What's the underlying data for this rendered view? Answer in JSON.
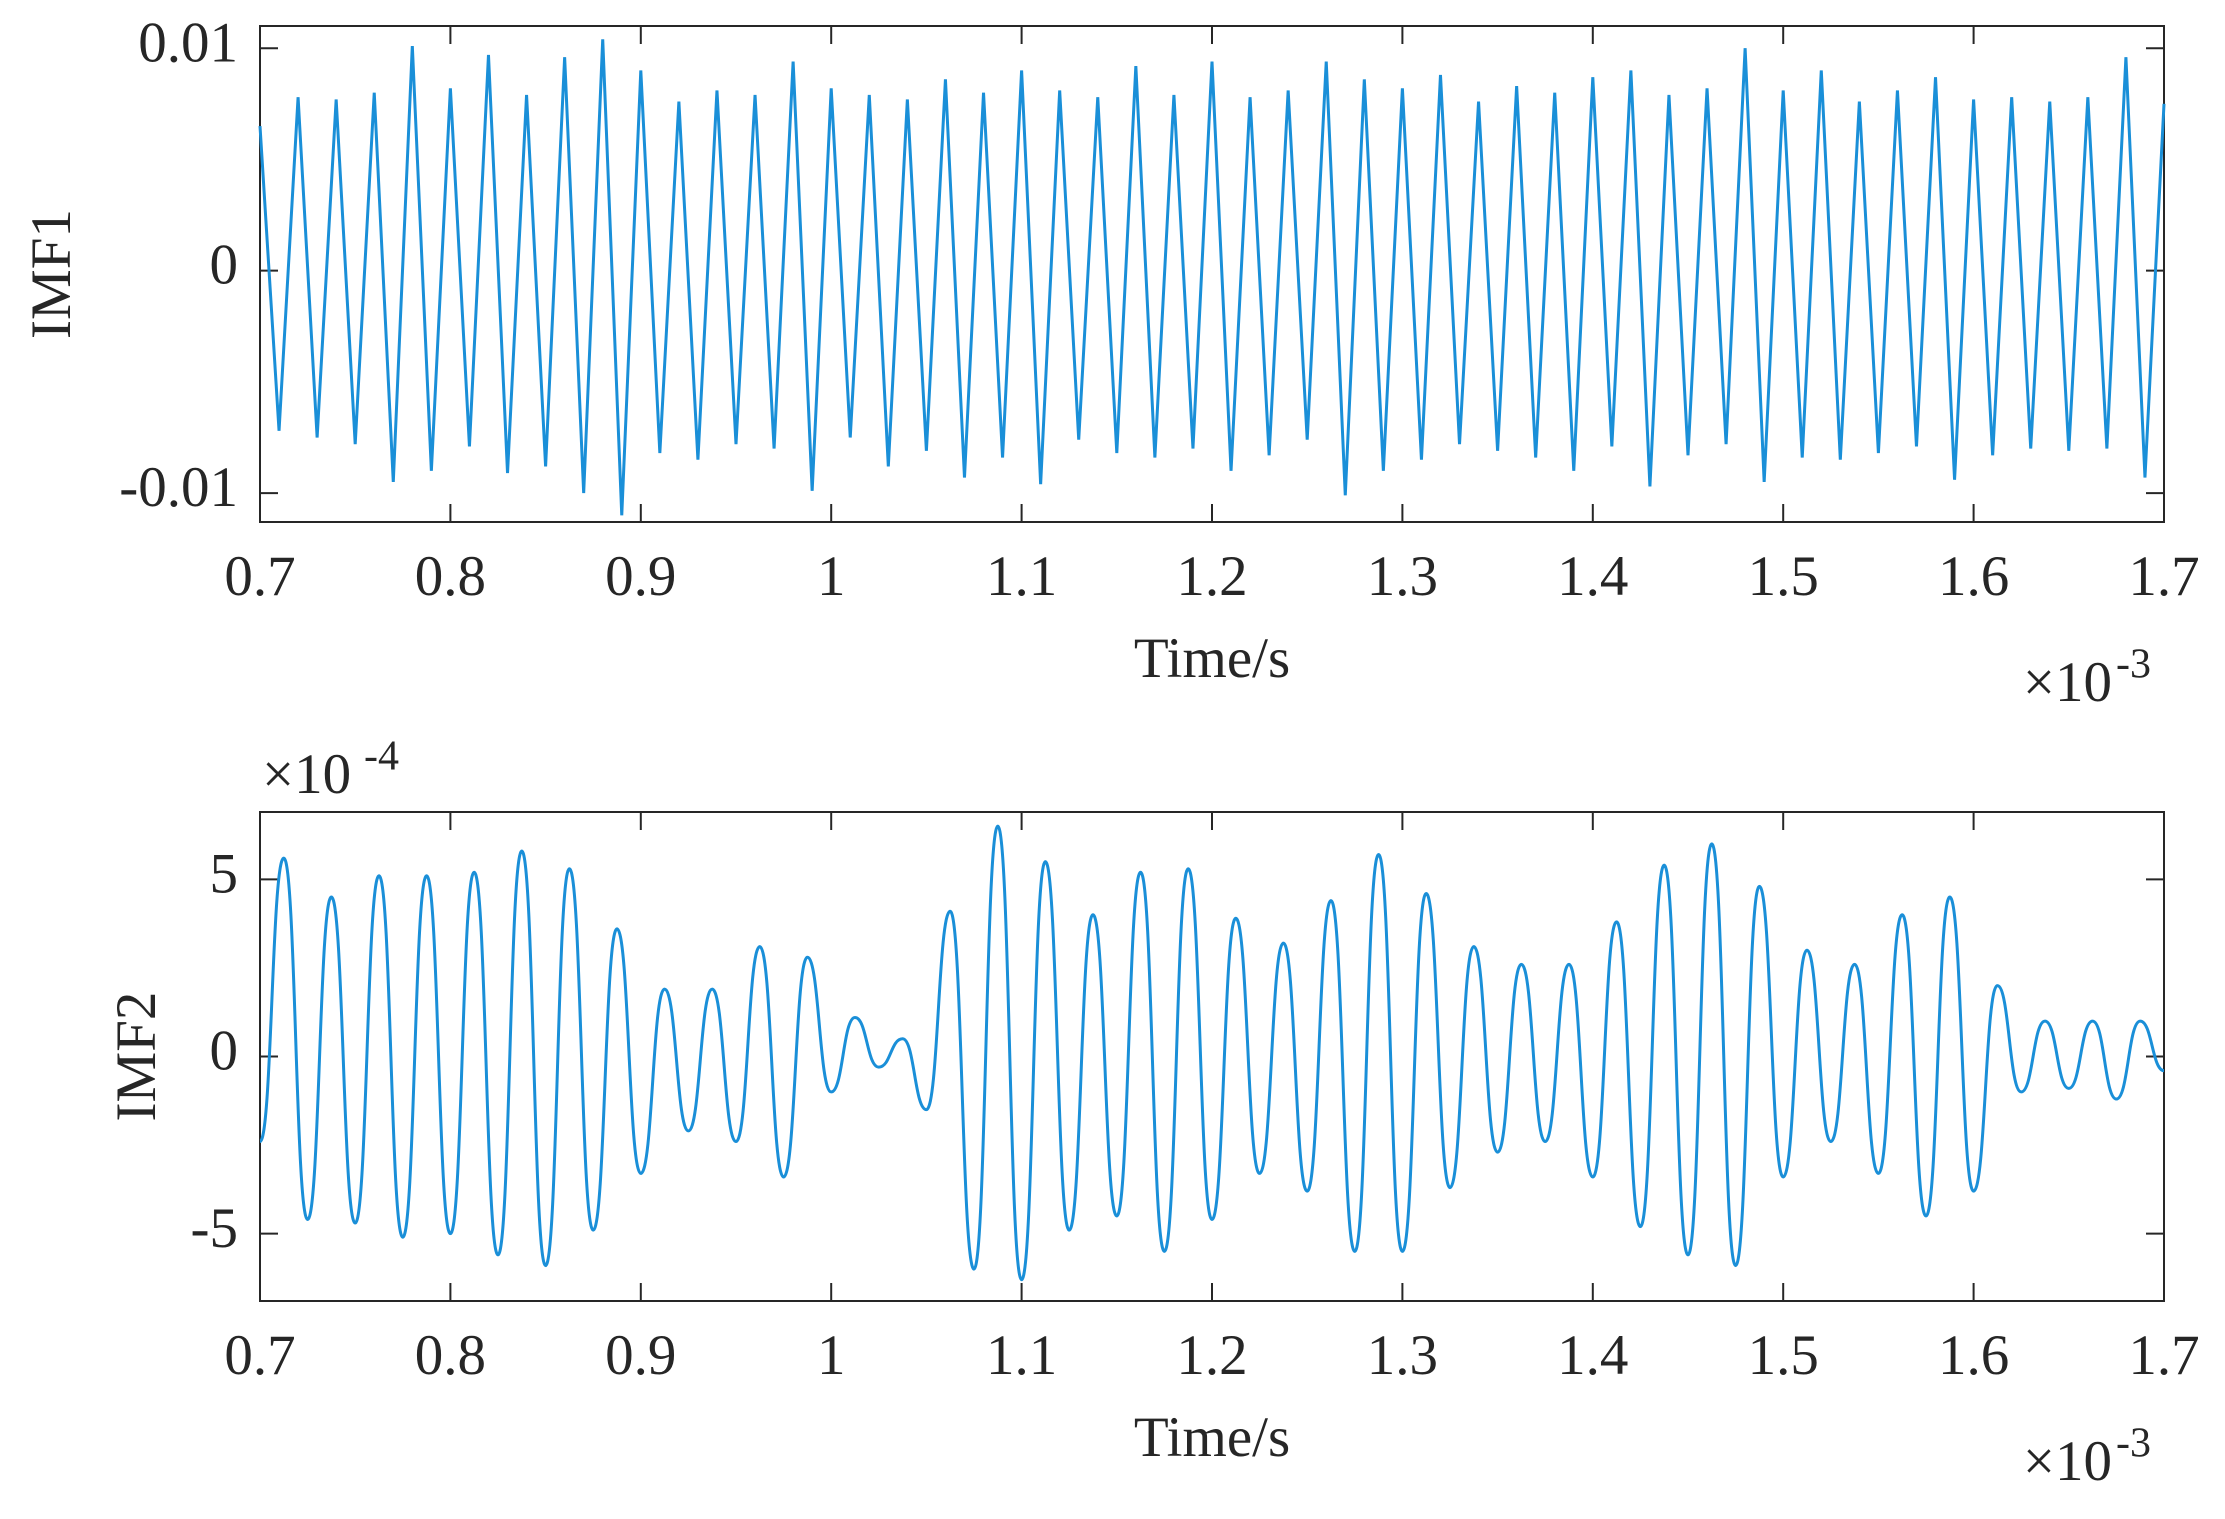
{
  "chart_data": [
    {
      "type": "line",
      "y_label": "IMF1",
      "x_label": "Time/s",
      "x_multiplier": {
        "base": "×10",
        "exponent": "-3"
      },
      "xlim": [
        0.7,
        1.7
      ],
      "xticks": [
        0.7,
        0.8,
        0.9,
        1,
        1.1,
        1.2,
        1.3,
        1.4,
        1.5,
        1.6,
        1.7
      ],
      "ylim": [
        -0.0113,
        0.011
      ],
      "yticks": [
        -0.01,
        0,
        0.01
      ],
      "x": [
        0.7,
        0.71,
        0.72,
        0.73,
        0.74,
        0.75,
        0.76,
        0.77,
        0.78,
        0.79,
        0.8,
        0.81,
        0.82,
        0.83,
        0.84,
        0.85,
        0.86,
        0.87,
        0.88,
        0.89,
        0.9,
        0.91,
        0.92,
        0.93,
        0.94,
        0.95,
        0.96,
        0.97,
        0.98,
        0.99,
        1.0,
        1.01,
        1.02,
        1.03,
        1.04,
        1.05,
        1.06,
        1.07,
        1.08,
        1.09,
        1.1,
        1.11,
        1.12,
        1.13,
        1.14,
        1.15,
        1.16,
        1.17,
        1.18,
        1.19,
        1.2,
        1.21,
        1.22,
        1.23,
        1.24,
        1.25,
        1.26,
        1.27,
        1.28,
        1.29,
        1.3,
        1.31,
        1.32,
        1.33,
        1.34,
        1.35,
        1.36,
        1.37,
        1.38,
        1.39,
        1.4,
        1.41,
        1.42,
        1.43,
        1.44,
        1.45,
        1.46,
        1.47,
        1.48,
        1.49,
        1.5,
        1.51,
        1.52,
        1.53,
        1.54,
        1.55,
        1.56,
        1.57,
        1.58,
        1.59,
        1.6,
        1.61,
        1.62,
        1.63,
        1.64,
        1.65,
        1.66,
        1.67,
        1.68,
        1.69,
        1.7
      ],
      "series": [
        {
          "color": "#1a8fd8",
          "smooth": false,
          "values": [
            0.0065,
            -0.0072,
            0.0078,
            -0.0075,
            0.0077,
            -0.0078,
            0.008,
            -0.0095,
            0.0101,
            -0.009,
            0.0082,
            -0.0079,
            0.0097,
            -0.0091,
            0.0079,
            -0.0088,
            0.0096,
            -0.01,
            0.0104,
            -0.011,
            0.009,
            -0.0082,
            0.0076,
            -0.0085,
            0.0081,
            -0.0078,
            0.0079,
            -0.008,
            0.0094,
            -0.0099,
            0.0082,
            -0.0075,
            0.0079,
            -0.0088,
            0.0077,
            -0.0081,
            0.0086,
            -0.0093,
            0.008,
            -0.0084,
            0.009,
            -0.0096,
            0.0081,
            -0.0076,
            0.0078,
            -0.0082,
            0.0092,
            -0.0084,
            0.0079,
            -0.008,
            0.0094,
            -0.009,
            0.0078,
            -0.0083,
            0.0081,
            -0.0076,
            0.0094,
            -0.0101,
            0.0086,
            -0.009,
            0.0082,
            -0.0085,
            0.0088,
            -0.0078,
            0.0076,
            -0.0081,
            0.0083,
            -0.0084,
            0.008,
            -0.009,
            0.0087,
            -0.0079,
            0.009,
            -0.0097,
            0.0079,
            -0.0083,
            0.0082,
            -0.0078,
            0.01,
            -0.0095,
            0.0081,
            -0.0084,
            0.009,
            -0.0085,
            0.0076,
            -0.0082,
            0.0081,
            -0.0079,
            0.0087,
            -0.0094,
            0.0077,
            -0.0083,
            0.0078,
            -0.008,
            0.0076,
            -0.0081,
            0.0078,
            -0.008,
            0.0096,
            -0.0093,
            0.0075
          ]
        }
      ]
    },
    {
      "type": "line",
      "y_label": "IMF2",
      "x_label": "Time/s",
      "x_multiplier": {
        "base": "×10",
        "exponent": "-3"
      },
      "y_multiplier": {
        "base": "×10",
        "exponent": "-4"
      },
      "xlim": [
        0.7,
        1.7
      ],
      "xticks": [
        0.7,
        0.8,
        0.9,
        1,
        1.1,
        1.2,
        1.3,
        1.4,
        1.5,
        1.6,
        1.7
      ],
      "ylim": [
        -6.9,
        6.9
      ],
      "yticks": [
        -5,
        0,
        5
      ],
      "x": [
        0.7,
        0.7125,
        0.725,
        0.7375,
        0.75,
        0.7625,
        0.775,
        0.7875,
        0.8,
        0.8125,
        0.825,
        0.8375,
        0.85,
        0.8625,
        0.875,
        0.8875,
        0.9,
        0.9125,
        0.925,
        0.9375,
        0.95,
        0.9625,
        0.975,
        0.9875,
        1.0,
        1.0125,
        1.025,
        1.0375,
        1.05,
        1.0625,
        1.075,
        1.0875,
        1.1,
        1.1125,
        1.125,
        1.1375,
        1.15,
        1.1625,
        1.175,
        1.1875,
        1.2,
        1.2125,
        1.225,
        1.2375,
        1.25,
        1.2625,
        1.275,
        1.2875,
        1.3,
        1.3125,
        1.325,
        1.3375,
        1.35,
        1.3625,
        1.375,
        1.3875,
        1.4,
        1.4125,
        1.425,
        1.4375,
        1.45,
        1.4625,
        1.475,
        1.4875,
        1.5,
        1.5125,
        1.525,
        1.5375,
        1.55,
        1.5625,
        1.575,
        1.5875,
        1.6,
        1.6125,
        1.625,
        1.6375,
        1.65,
        1.6625,
        1.675,
        1.6875,
        1.7
      ],
      "series": [
        {
          "color": "#1a8fd8",
          "smooth": true,
          "values": [
            -2.4,
            5.6,
            -4.6,
            4.5,
            -4.7,
            5.1,
            -5.1,
            5.1,
            -5.0,
            5.2,
            -5.6,
            5.8,
            -5.9,
            5.3,
            -4.9,
            3.6,
            -3.3,
            1.9,
            -2.1,
            1.9,
            -2.4,
            3.1,
            -3.4,
            2.8,
            -1.0,
            1.1,
            -0.3,
            0.5,
            -1.5,
            4.1,
            -6.0,
            6.5,
            -6.3,
            5.5,
            -4.9,
            4.0,
            -4.5,
            5.2,
            -5.5,
            5.3,
            -4.6,
            3.9,
            -3.3,
            3.2,
            -3.8,
            4.4,
            -5.5,
            5.7,
            -5.5,
            4.6,
            -3.7,
            3.1,
            -2.7,
            2.6,
            -2.4,
            2.6,
            -3.4,
            3.8,
            -4.8,
            5.4,
            -5.6,
            6.0,
            -5.9,
            4.8,
            -3.4,
            3.0,
            -2.4,
            2.6,
            -3.3,
            4.0,
            -4.5,
            4.5,
            -3.8,
            2.0,
            -1.0,
            1.0,
            -0.9,
            1.0,
            -1.2,
            1.0,
            -0.4
          ]
        }
      ]
    }
  ]
}
